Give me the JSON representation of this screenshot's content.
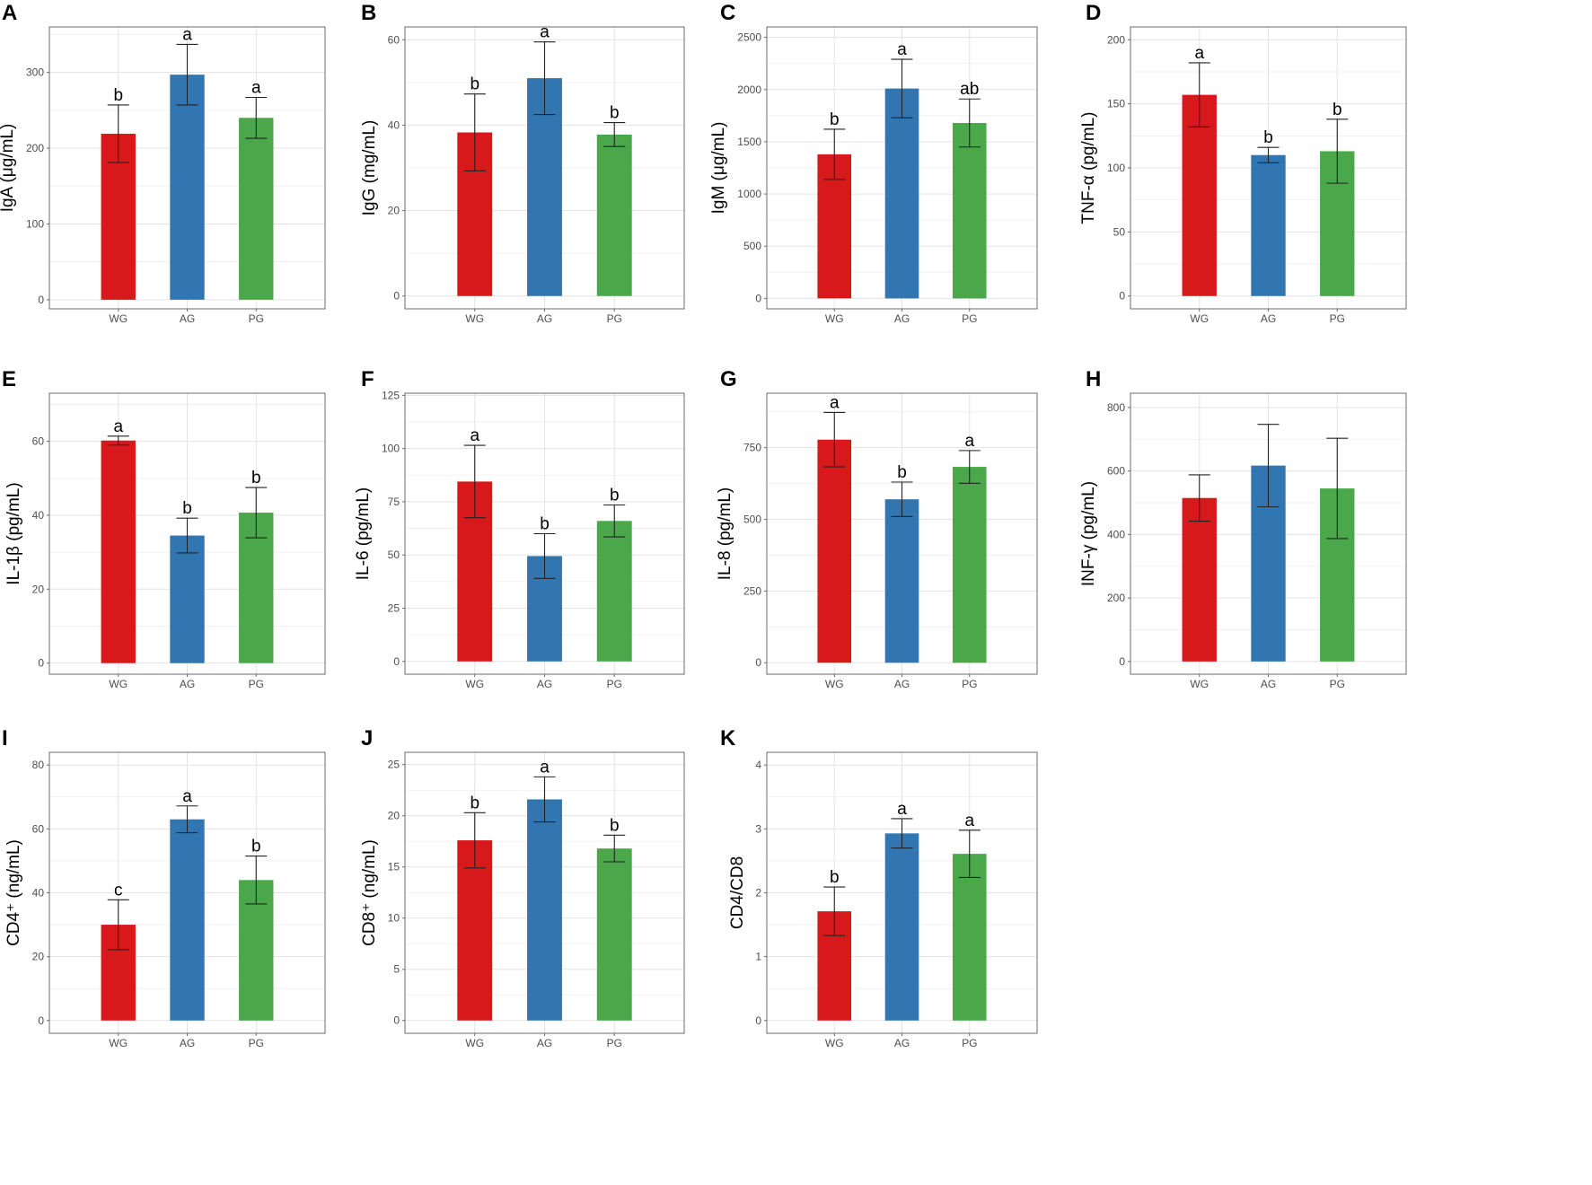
{
  "colors": {
    "WG": "#D7191C",
    "AG": "#3276B1",
    "PG": "#4AA84A"
  },
  "chart_data": [
    {
      "id": "A",
      "type": "bar",
      "ylabel": "IgA (μg/mL)",
      "categories": [
        "WG",
        "AG",
        "PG"
      ],
      "values": [
        219,
        297,
        240
      ],
      "errors": [
        38,
        40,
        27
      ],
      "sig": [
        "b",
        "a",
        "a"
      ],
      "ylim": [
        -12,
        360
      ],
      "yticks": [
        0,
        100,
        200,
        300
      ],
      "yticklabels": [
        "0",
        "100",
        "200",
        "300"
      ]
    },
    {
      "id": "B",
      "type": "bar",
      "ylabel": "IgG (mg/mL)",
      "categories": [
        "WG",
        "AG",
        "PG"
      ],
      "values": [
        38.3,
        51.0,
        37.8
      ],
      "errors": [
        9,
        8.5,
        2.8
      ],
      "sig": [
        "b",
        "a",
        "b"
      ],
      "ylim": [
        -3,
        63
      ],
      "yticks": [
        0,
        20,
        40,
        60
      ],
      "yticklabels": [
        "0",
        "20",
        "40",
        "60"
      ]
    },
    {
      "id": "C",
      "type": "bar",
      "ylabel": "IgM (μg/mL)",
      "categories": [
        "WG",
        "AG",
        "PG"
      ],
      "values": [
        1380,
        2010,
        1680
      ],
      "errors": [
        240,
        280,
        230
      ],
      "sig": [
        "b",
        "a",
        "ab"
      ],
      "ylim": [
        -100,
        2600
      ],
      "yticks": [
        0,
        500,
        1000,
        1500,
        2000,
        2500
      ],
      "yticklabels": [
        "0",
        "500",
        "1000",
        "1500",
        "2000",
        "2500"
      ]
    },
    {
      "id": "D",
      "type": "bar",
      "ylabel": "TNF-α (pg/mL)",
      "categories": [
        "WG",
        "AG",
        "PG"
      ],
      "values": [
        157,
        110,
        113
      ],
      "errors": [
        25,
        6,
        25
      ],
      "sig": [
        "a",
        "b",
        "b"
      ],
      "ylim": [
        -10,
        210
      ],
      "yticks": [
        0,
        50,
        100,
        150,
        200
      ],
      "yticklabels": [
        "0",
        "50",
        "100",
        "150",
        "200"
      ]
    },
    {
      "id": "E",
      "type": "bar",
      "ylabel": "IL-1β (pg/mL)",
      "categories": [
        "WG",
        "AG",
        "PG"
      ],
      "values": [
        60.2,
        34.5,
        40.7
      ],
      "errors": [
        1.2,
        4.7,
        6.8
      ],
      "sig": [
        "a",
        "b",
        "b"
      ],
      "ylim": [
        -3,
        73
      ],
      "yticks": [
        0,
        20,
        40,
        60
      ],
      "yticklabels": [
        "0",
        "20",
        "40",
        "60"
      ]
    },
    {
      "id": "F",
      "type": "bar",
      "ylabel": "IL-6 (pg/mL)",
      "categories": [
        "WG",
        "AG",
        "PG"
      ],
      "values": [
        84.5,
        49.5,
        66.0
      ],
      "errors": [
        17,
        10.5,
        7.5
      ],
      "sig": [
        "a",
        "b",
        "b"
      ],
      "ylim": [
        -6,
        126
      ],
      "yticks": [
        0,
        25,
        50,
        75,
        100,
        125
      ],
      "yticklabels": [
        "0",
        "25",
        "50",
        "75",
        "100",
        "125"
      ]
    },
    {
      "id": "G",
      "type": "bar",
      "ylabel": "IL-8 (pg/mL)",
      "categories": [
        "WG",
        "AG",
        "PG"
      ],
      "values": [
        778,
        570,
        683
      ],
      "errors": [
        95,
        60,
        57
      ],
      "sig": [
        "a",
        "b",
        "a"
      ],
      "ylim": [
        -40,
        940
      ],
      "yticks": [
        0,
        250,
        500,
        750
      ],
      "yticklabels": [
        "0",
        "250",
        "500",
        "750"
      ]
    },
    {
      "id": "H",
      "type": "bar",
      "ylabel": "INF-γ (pg/mL)",
      "categories": [
        "WG",
        "AG",
        "PG"
      ],
      "values": [
        515,
        617,
        545
      ],
      "errors": [
        73,
        130,
        158
      ],
      "sig": [
        "",
        "",
        ""
      ],
      "ylim": [
        -40,
        845
      ],
      "yticks": [
        0,
        200,
        400,
        600,
        800
      ],
      "yticklabels": [
        "0",
        "200",
        "400",
        "600",
        "800"
      ]
    },
    {
      "id": "I",
      "type": "bar",
      "ylabel": "CD4⁺ (ng/mL)",
      "categories": [
        "WG",
        "AG",
        "PG"
      ],
      "values": [
        30.0,
        63.0,
        44.0
      ],
      "errors": [
        7.8,
        4.2,
        7.5
      ],
      "sig": [
        "c",
        "a",
        "b"
      ],
      "ylim": [
        -4,
        84
      ],
      "yticks": [
        0,
        20,
        40,
        60,
        80
      ],
      "yticklabels": [
        "0",
        "20",
        "40",
        "60",
        "80"
      ]
    },
    {
      "id": "J",
      "type": "bar",
      "ylabel": "CD8⁺ (ng/mL)",
      "categories": [
        "WG",
        "AG",
        "PG"
      ],
      "values": [
        17.6,
        21.6,
        16.8
      ],
      "errors": [
        2.7,
        2.2,
        1.3
      ],
      "sig": [
        "b",
        "a",
        "b"
      ],
      "ylim": [
        -1.25,
        26.2
      ],
      "yticks": [
        0,
        5,
        10,
        15,
        20,
        25
      ],
      "yticklabels": [
        "0",
        "5",
        "10",
        "15",
        "20",
        "25"
      ]
    },
    {
      "id": "K",
      "type": "bar",
      "ylabel": "CD4/CD8",
      "categories": [
        "WG",
        "AG",
        "PG"
      ],
      "values": [
        1.71,
        2.93,
        2.61
      ],
      "errors": [
        0.38,
        0.23,
        0.37
      ],
      "sig": [
        "b",
        "a",
        "a"
      ],
      "ylim": [
        -0.2,
        4.2
      ],
      "yticks": [
        0,
        1,
        2,
        3,
        4
      ],
      "yticklabels": [
        "0",
        "1",
        "2",
        "3",
        "4"
      ]
    }
  ]
}
